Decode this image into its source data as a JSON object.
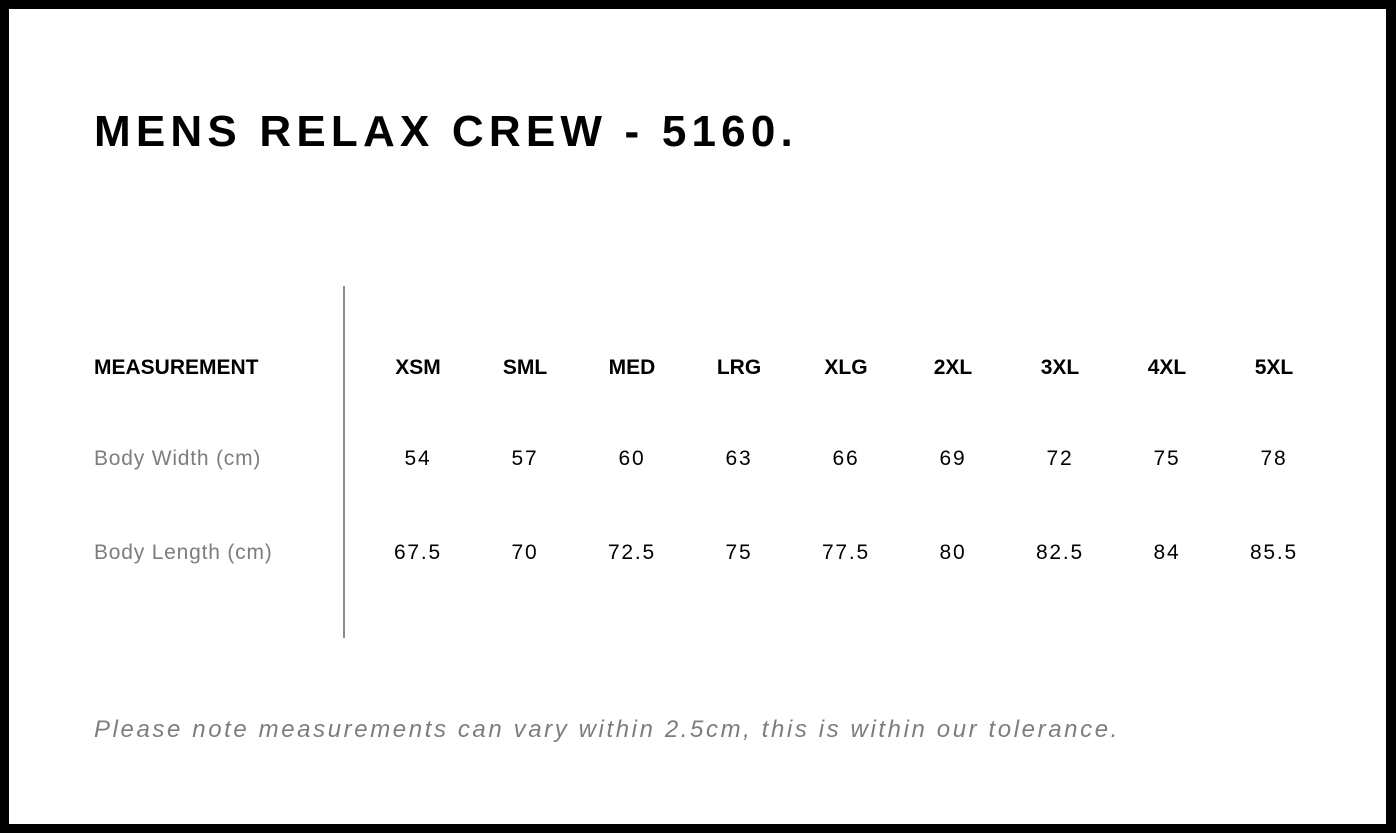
{
  "title": "MENS RELAX CREW - 5160.",
  "table": {
    "header_label": "MEASUREMENT",
    "sizes": [
      "XSM",
      "SML",
      "MED",
      "LRG",
      "XLG",
      "2XL",
      "3XL",
      "4XL",
      "5XL"
    ],
    "rows": [
      {
        "label": "Body Width (cm)",
        "values": [
          "54",
          "57",
          "60",
          "63",
          "66",
          "69",
          "72",
          "75",
          "78"
        ]
      },
      {
        "label": "Body Length (cm)",
        "values": [
          "67.5",
          "70",
          "72.5",
          "75",
          "77.5",
          "80",
          "82.5",
          "84",
          "85.5"
        ]
      }
    ]
  },
  "note": "Please note measurements can vary within 2.5cm, this is within our tolerance."
}
